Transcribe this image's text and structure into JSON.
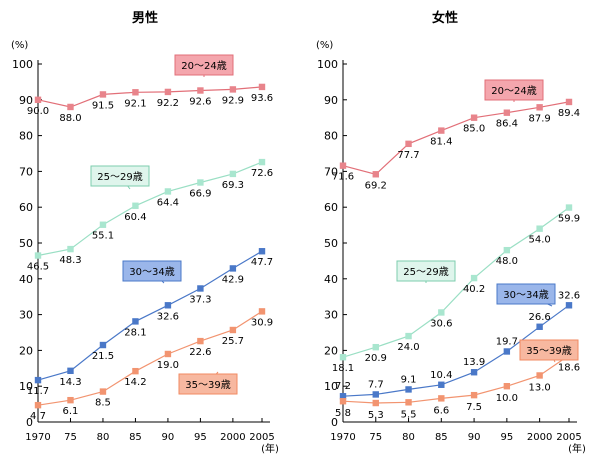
{
  "colors": {
    "axis": "#000000",
    "text": "#000000",
    "series": {
      "20~24": {
        "line": "#e26f78",
        "marker": "#e8848b",
        "labelFill": "#f4a6ad",
        "labelStroke": "#e26f78"
      },
      "25~29": {
        "line": "#9adfc4",
        "marker": "#a9e6cf",
        "labelFill": "#dff5ec",
        "labelStroke": "#7ccdae"
      },
      "30~34": {
        "line": "#4a78c8",
        "marker": "#4a78c8",
        "labelFill": "#9ab6ea",
        "labelStroke": "#4a78c8"
      },
      "35~39": {
        "line": "#f29470",
        "marker": "#f29470",
        "labelFill": "#f7b8a0",
        "labelStroke": "#f08a62"
      }
    }
  },
  "chart_data": [
    {
      "type": "line",
      "title": "男性",
      "y_unit": "(%)",
      "x_unit": "(年)",
      "ylim": [
        0,
        100
      ],
      "yticks": [
        0,
        10,
        20,
        30,
        40,
        50,
        60,
        70,
        80,
        90,
        100
      ],
      "x": [
        1970,
        1975,
        1980,
        1985,
        1990,
        1995,
        2000,
        2005
      ],
      "xtick_labels": [
        "1970",
        "75",
        "80",
        "85",
        "90",
        "95",
        "2000",
        "2005"
      ],
      "grid": false,
      "series": [
        {
          "key": "20~24",
          "name": "20～24歳",
          "values": [
            90.0,
            88.0,
            91.5,
            92.1,
            92.2,
            92.6,
            92.9,
            93.6
          ],
          "value_labels": [
            "90.0",
            "88.0",
            "91.5",
            "92.1",
            "92.2",
            "92.6",
            "92.9",
            "93.6"
          ]
        },
        {
          "key": "25~29",
          "name": "25～29歳",
          "values": [
            46.5,
            48.3,
            55.1,
            60.4,
            64.4,
            66.9,
            69.3,
            72.6
          ],
          "value_labels": [
            "46.5",
            "48.3",
            "55.1",
            "60.4",
            "64.4",
            "66.9",
            "69.3",
            "72.6"
          ]
        },
        {
          "key": "30~34",
          "name": "30～34歳",
          "values": [
            11.7,
            14.3,
            21.5,
            28.1,
            32.6,
            37.3,
            42.9,
            47.7
          ],
          "value_labels": [
            "11.7",
            "14.3",
            "21.5",
            "28.1",
            "32.6",
            "37.3",
            "42.9",
            "47.7"
          ]
        },
        {
          "key": "35~39",
          "name": "35～39歳",
          "values": [
            4.7,
            6.1,
            8.5,
            14.2,
            19.0,
            22.6,
            25.7,
            30.9
          ],
          "value_labels": [
            "4.7",
            "6.1",
            "8.5",
            "14.2",
            "19.0",
            "22.6",
            "25.7",
            "30.9"
          ]
        }
      ]
    },
    {
      "type": "line",
      "title": "女性",
      "y_unit": "(%)",
      "x_unit": "(年)",
      "ylim": [
        0,
        100
      ],
      "yticks": [
        0,
        10,
        20,
        30,
        40,
        50,
        60,
        70,
        80,
        90,
        100
      ],
      "x": [
        1970,
        1975,
        1980,
        1985,
        1990,
        1995,
        2000,
        2005
      ],
      "xtick_labels": [
        "1970",
        "75",
        "80",
        "85",
        "90",
        "95",
        "2000",
        "2005"
      ],
      "grid": false,
      "series": [
        {
          "key": "20~24",
          "name": "20～24歳",
          "values": [
            71.6,
            69.2,
            77.7,
            81.4,
            85.0,
            86.4,
            87.9,
            89.4
          ],
          "value_labels": [
            "71.6",
            "69.2",
            "77.7",
            "81.4",
            "85.0",
            "86.4",
            "87.9",
            "89.4"
          ]
        },
        {
          "key": "25~29",
          "name": "25～29歳",
          "values": [
            18.1,
            20.9,
            24.0,
            30.6,
            40.2,
            48.0,
            54.0,
            59.9
          ],
          "value_labels": [
            "18.1",
            "20.9",
            "24.0",
            "30.6",
            "40.2",
            "48.0",
            "54.0",
            "59.9"
          ]
        },
        {
          "key": "30~34",
          "name": "30～34歳",
          "values": [
            7.2,
            7.7,
            9.1,
            10.4,
            13.9,
            19.7,
            26.6,
            32.6
          ],
          "value_labels": [
            "7.2",
            "7.7",
            "9.1",
            "10.4",
            "13.9",
            "19.7",
            "26.6",
            "32.6"
          ]
        },
        {
          "key": "35~39",
          "name": "35～39歳",
          "values": [
            5.8,
            5.3,
            5.5,
            6.6,
            7.5,
            10.0,
            13.0,
            18.6
          ],
          "value_labels": [
            "5.8",
            "5.3",
            "5.5",
            "6.6",
            "7.5",
            "10.0",
            "13.0",
            "18.6"
          ]
        }
      ]
    }
  ]
}
